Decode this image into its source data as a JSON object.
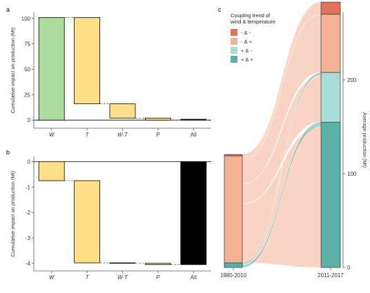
{
  "panels": {
    "a": "a",
    "b": "b",
    "c": "c"
  },
  "chart_data": [
    {
      "panel": "a",
      "type": "bar",
      "subtype": "waterfall",
      "categories": [
        "W",
        "T",
        "W·T",
        "P",
        "All"
      ],
      "category_italic": [
        true,
        true,
        true,
        true,
        false
      ],
      "bars": [
        {
          "category": "W",
          "start": 0,
          "end": 101,
          "color": "#acdd9e"
        },
        {
          "category": "T",
          "start": 101,
          "end": 16,
          "color": "#fddf88"
        },
        {
          "category": "W·T",
          "start": 16,
          "end": 2,
          "color": "#fddf88"
        },
        {
          "category": "P",
          "start": 2,
          "end": 0,
          "color": "#fddf88"
        },
        {
          "category": "All",
          "start": 0,
          "end": 0.8,
          "color": "#000000"
        }
      ],
      "ylabel": "Cumulative impact on production (Mt)",
      "ylim": [
        -8,
        106
      ],
      "yticks": [
        0,
        25,
        50,
        75,
        100
      ],
      "ytick_labels": [
        "0",
        "25",
        "50",
        "75",
        "100"
      ],
      "zero_line": true,
      "grid": false
    },
    {
      "panel": "b",
      "type": "bar",
      "subtype": "waterfall",
      "categories": [
        "W",
        "T",
        "W·T",
        "P",
        "All"
      ],
      "category_italic": [
        true,
        true,
        true,
        true,
        false
      ],
      "bars": [
        {
          "category": "W",
          "start": 0,
          "end": -0.75,
          "color": "#fddf88"
        },
        {
          "category": "T",
          "start": -0.75,
          "end": -3.98,
          "color": "#fddf88"
        },
        {
          "category": "W·T",
          "start": -3.98,
          "end": -4.0,
          "color": "#fddf88"
        },
        {
          "category": "P",
          "start": -4.0,
          "end": -4.05,
          "color": "#fddf88"
        },
        {
          "category": "All",
          "start": 0,
          "end": -4.05,
          "color": "#000000"
        }
      ],
      "ylabel": "Cumulative impact on production (Mt)",
      "ylim": [
        -4.3,
        0.2
      ],
      "yticks": [
        0,
        -1,
        -2,
        -3,
        -4
      ],
      "ytick_labels": [
        "0",
        "-1",
        "-2",
        "-3",
        "-4"
      ],
      "zero_line": true,
      "grid": false
    },
    {
      "panel": "c",
      "type": "alluvial",
      "x": [
        "1980-2010",
        "2011-2017"
      ],
      "ylabel": "Average production (Mt)",
      "ylim": [
        0,
        272
      ],
      "yticks": [
        0,
        100,
        200
      ],
      "ytick_labels": [
        "0",
        "100",
        "200"
      ],
      "legend": {
        "title": "Coupling trend of\nwind & temperature",
        "position": "top-left",
        "items": [
          {
            "label": "- & -",
            "color": "#e1725f"
          },
          {
            "label": "- & +",
            "color": "#f4b193"
          },
          {
            "label": "+ & -",
            "color": "#aadcd6"
          },
          {
            "label": "+ & +",
            "color": "#5cb1a6"
          }
        ]
      },
      "stacks": [
        {
          "x": "1980-2010",
          "segments": [
            {
              "label": "+ & +",
              "value": 5
            },
            {
              "label": "- & +",
              "value": 114
            },
            {
              "label": "- & -",
              "value": 1.5
            }
          ]
        },
        {
          "x": "2011-2017",
          "segments": [
            {
              "label": "+ & +",
              "value": 155
            },
            {
              "label": "+ & -",
              "value": 53
            },
            {
              "label": "- & +",
              "value": 62
            },
            {
              "label": "- & -",
              "value": 13
            }
          ]
        }
      ],
      "flows": [
        {
          "from": "- & +",
          "to": "+ & +",
          "value": 150,
          "color": "#f4b193"
        },
        {
          "from": "- & +",
          "to": "+ & -",
          "value": 50,
          "color": "#f4b193"
        },
        {
          "from": "- & +",
          "to": "- & +",
          "value": 60,
          "color": "#f4b193"
        },
        {
          "from": "- & +",
          "to": "- & -",
          "value": 12,
          "color": "#f4b193"
        },
        {
          "from": "+ & +",
          "to": "+ & +",
          "value": 5,
          "color": "#5cb1a6"
        },
        {
          "from": "+ & +",
          "to": "+ & -",
          "value": 3,
          "color": "#5cb1a6"
        },
        {
          "from": "- & -",
          "to": "- & -",
          "value": 1,
          "color": "#e1725f"
        }
      ]
    }
  ]
}
